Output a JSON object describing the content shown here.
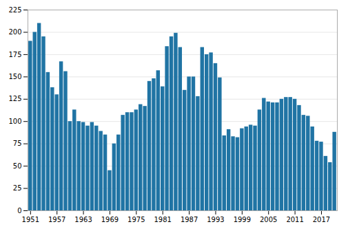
{
  "chart_data": {
    "type": "bar",
    "x": [
      1951,
      1952,
      1953,
      1954,
      1955,
      1956,
      1957,
      1958,
      1959,
      1960,
      1961,
      1962,
      1963,
      1964,
      1965,
      1966,
      1967,
      1968,
      1969,
      1970,
      1971,
      1972,
      1973,
      1974,
      1975,
      1976,
      1977,
      1978,
      1979,
      1980,
      1981,
      1982,
      1983,
      1984,
      1985,
      1986,
      1987,
      1988,
      1989,
      1990,
      1991,
      1992,
      1993,
      1994,
      1995,
      1996,
      1997,
      1998,
      1999,
      2000,
      2001,
      2002,
      2003,
      2004,
      2005,
      2006,
      2007,
      2008,
      2009,
      2010,
      2011,
      2012,
      2013,
      2014,
      2015,
      2016,
      2017,
      2018,
      2019,
      2020
    ],
    "values": [
      190,
      200,
      210,
      195,
      155,
      138,
      130,
      167,
      156,
      100,
      113,
      100,
      99,
      95,
      99,
      95,
      89,
      85,
      45,
      75,
      85,
      107,
      110,
      110,
      113,
      119,
      117,
      145,
      148,
      157,
      139,
      184,
      195,
      199,
      183,
      135,
      150,
      150,
      128,
      183,
      175,
      177,
      165,
      149,
      84,
      91,
      83,
      82,
      92,
      94,
      96,
      95,
      113,
      126,
      122,
      121,
      121,
      125,
      127,
      127,
      125,
      118,
      107,
      106,
      94,
      78,
      77,
      61,
      54,
      88
    ],
    "color": "#2074a4",
    "xlim": [
      1950.4,
      2020.6
    ],
    "xticks": [
      1951,
      1957,
      1963,
      1969,
      1975,
      1981,
      1987,
      1993,
      1999,
      2005,
      2011,
      2017
    ],
    "ylim": [
      0,
      225
    ],
    "yticks": [
      0,
      25,
      50,
      75,
      100,
      125,
      150,
      175,
      200,
      225
    ],
    "grid": true
  }
}
